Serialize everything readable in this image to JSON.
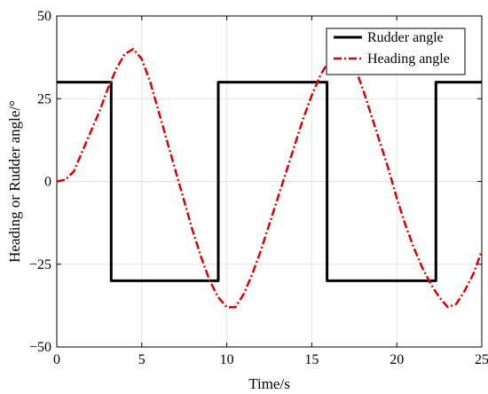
{
  "chart_data": {
    "type": "line",
    "xlabel": "Time/s",
    "ylabel": "Heading or Rudder angle/°",
    "xlim": [
      0,
      25
    ],
    "ylim": [
      -50,
      50
    ],
    "xticks": [
      0,
      5,
      10,
      15,
      20,
      25
    ],
    "yticks": [
      -50,
      -25,
      0,
      25,
      50
    ],
    "xtick_labels": [
      "0",
      "5",
      "10",
      "15",
      "20",
      "25"
    ],
    "ytick_labels": [
      "−50",
      "−25",
      "0",
      "25",
      "50"
    ],
    "grid": true,
    "legend_position": "top-right",
    "series": [
      {
        "name": "Rudder angle",
        "color": "#000000",
        "style": "solid",
        "x": [
          0,
          3.2,
          3.2,
          9.5,
          9.5,
          15.9,
          15.9,
          22.3,
          22.3,
          25
        ],
        "y": [
          30,
          30,
          -30,
          -30,
          30,
          30,
          -30,
          -30,
          30,
          30
        ]
      },
      {
        "name": "Heading angle",
        "color": "#e00000",
        "style": "dashdot",
        "x": [
          0,
          0.5,
          1,
          1.5,
          2,
          2.5,
          3,
          3.5,
          4,
          4.5,
          5,
          5.5,
          6,
          6.5,
          7,
          7.5,
          8,
          8.5,
          9,
          9.5,
          10,
          10.5,
          11,
          11.5,
          12,
          12.5,
          13,
          13.5,
          14,
          14.5,
          15,
          15.5,
          16,
          16.5,
          17,
          17.5,
          18,
          18.5,
          19,
          19.5,
          20,
          20.5,
          21,
          21.5,
          22,
          22.5,
          23,
          23.5,
          24,
          24.5,
          25
        ],
        "y": [
          0,
          0.5,
          3,
          9,
          15,
          21,
          28,
          34,
          38.5,
          40,
          37,
          30,
          21,
          12,
          3,
          -6,
          -15,
          -23,
          -30,
          -35,
          -38,
          -38,
          -34,
          -28,
          -21,
          -13,
          -5,
          3,
          11,
          19,
          26,
          32,
          36.5,
          39,
          38,
          35,
          28,
          20,
          12,
          4,
          -5,
          -13,
          -20,
          -26,
          -31,
          -35,
          -38,
          -37,
          -33,
          -28,
          -21
        ]
      }
    ]
  }
}
